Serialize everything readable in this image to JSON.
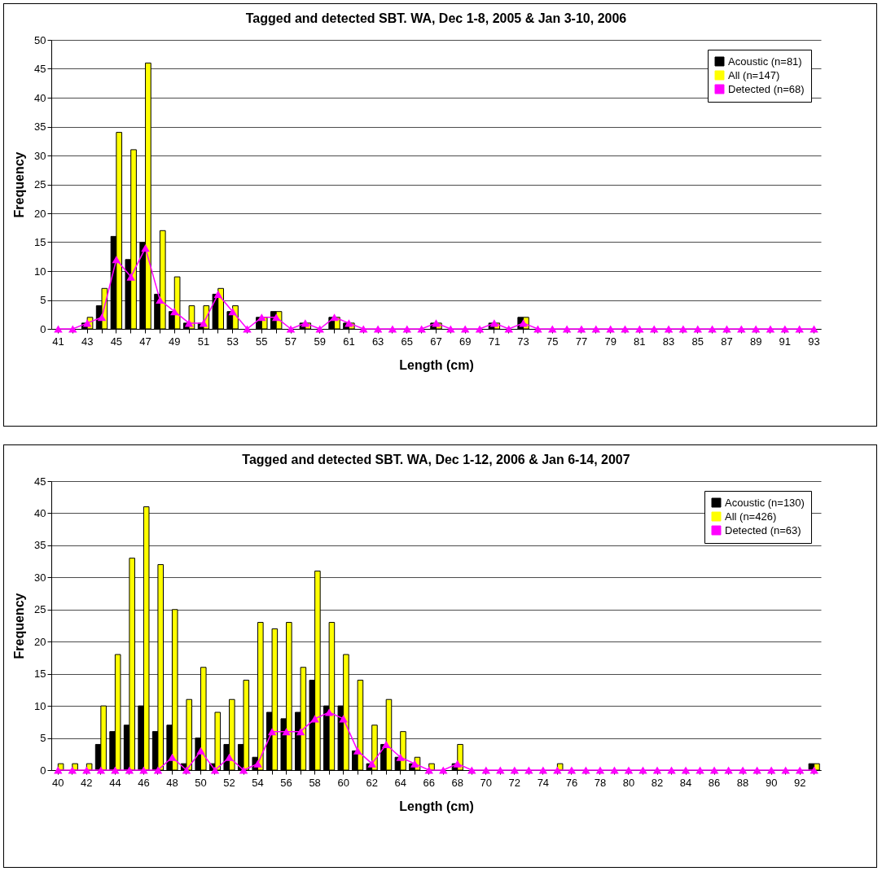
{
  "chart_data": [
    {
      "type": "bar",
      "title": "Tagged and detected SBT. WA, Dec 1-8, 2005 & Jan 3-10, 2006",
      "xlabel": "Length (cm)",
      "ylabel": "Frequency",
      "categories": [
        "41",
        null,
        "43",
        null,
        "45",
        null,
        "47",
        null,
        "49",
        null,
        "51",
        null,
        "53",
        null,
        "55",
        null,
        "57",
        null,
        "59",
        null,
        "61",
        null,
        "63",
        null,
        "65",
        null,
        "67",
        null,
        "69",
        null,
        "71",
        null,
        "73",
        null,
        "75",
        null,
        "77",
        null,
        "79",
        null,
        "81",
        null,
        "83",
        null,
        "85",
        null,
        "87",
        null,
        "89",
        null,
        "91",
        null,
        "93"
      ],
      "series": [
        {
          "name": "Acoustic (n=81)",
          "color": "#000000",
          "values": [
            0,
            0,
            1,
            4,
            16,
            12,
            15,
            6,
            3,
            1,
            1,
            6,
            3,
            0,
            2,
            3,
            0,
            1,
            0,
            2,
            1,
            0,
            0,
            0,
            0,
            0,
            1,
            0,
            0,
            0,
            1,
            0,
            2,
            0,
            0,
            0,
            0,
            0,
            0,
            0,
            0,
            0,
            0,
            0,
            0,
            0,
            0,
            0,
            0,
            0,
            0,
            0,
            0
          ]
        },
        {
          "name": "All (n=147)",
          "color": "#ffff00",
          "values": [
            0,
            0,
            2,
            7,
            34,
            31,
            46,
            17,
            9,
            4,
            4,
            7,
            4,
            0,
            2,
            3,
            0,
            1,
            0,
            2,
            1,
            0,
            0,
            0,
            0,
            0,
            1,
            0,
            0,
            0,
            1,
            0,
            2,
            0,
            0,
            0,
            0,
            0,
            0,
            0,
            0,
            0,
            0,
            0,
            0,
            0,
            0,
            0,
            0,
            0,
            0,
            0,
            0
          ]
        },
        {
          "name": "Detected (n=68)",
          "type": "line",
          "color": "#ff00ff",
          "values": [
            0,
            0,
            1,
            2,
            12,
            9,
            14,
            5,
            3,
            1,
            1,
            6,
            3,
            0,
            2,
            2,
            0,
            1,
            0,
            2,
            1,
            0,
            0,
            0,
            0,
            0,
            1,
            0,
            0,
            0,
            1,
            0,
            1,
            0,
            0,
            0,
            0,
            0,
            0,
            0,
            0,
            0,
            0,
            0,
            0,
            0,
            0,
            0,
            0,
            0,
            0,
            0,
            0
          ]
        }
      ],
      "ylim": [
        0,
        50
      ],
      "yticks": [
        0,
        5,
        10,
        15,
        20,
        25,
        30,
        35,
        40,
        45,
        50
      ],
      "grid": "y",
      "legend": "top right",
      "marker": "triangle"
    },
    {
      "type": "bar",
      "title": "Tagged and detected SBT. WA, Dec 1-12, 2006 & Jan 6-14, 2007",
      "xlabel": "Length (cm)",
      "ylabel": "Frequency",
      "categories": [
        "40",
        null,
        "42",
        null,
        "44",
        null,
        "46",
        null,
        "48",
        null,
        "50",
        null,
        "52",
        null,
        "54",
        null,
        "56",
        null,
        "58",
        null,
        "60",
        null,
        "62",
        null,
        "64",
        null,
        "66",
        null,
        "68",
        null,
        "70",
        null,
        "72",
        null,
        "74",
        null,
        "76",
        null,
        "78",
        null,
        "80",
        null,
        "82",
        null,
        "84",
        null,
        "86",
        null,
        "88",
        null,
        "90",
        null,
        "92",
        null
      ],
      "series": [
        {
          "name": "Acoustic (n=130)",
          "color": "#000000",
          "values": [
            0,
            0,
            0,
            4,
            6,
            7,
            10,
            6,
            7,
            1,
            5,
            1,
            4,
            4,
            2,
            9,
            8,
            9,
            14,
            10,
            10,
            3,
            1,
            4,
            2,
            1,
            0,
            0,
            1,
            0,
            0,
            0,
            0,
            0,
            0,
            0,
            0,
            0,
            0,
            0,
            0,
            0,
            0,
            0,
            0,
            0,
            0,
            0,
            0,
            0,
            0,
            0,
            0,
            1
          ]
        },
        {
          "name": "All (n=426)",
          "color": "#ffff00",
          "values": [
            1,
            1,
            1,
            10,
            18,
            33,
            41,
            32,
            25,
            11,
            16,
            9,
            11,
            14,
            23,
            22,
            23,
            16,
            31,
            23,
            18,
            14,
            7,
            11,
            6,
            2,
            1,
            0,
            4,
            0,
            0,
            0,
            0,
            0,
            0,
            1,
            0,
            0,
            0,
            0,
            0,
            0,
            0,
            0,
            0,
            0,
            0,
            0,
            0,
            0,
            0,
            0,
            0,
            1
          ]
        },
        {
          "name": "Detected (n=63)",
          "type": "line",
          "color": "#ff00ff",
          "values": [
            0,
            0,
            0,
            0,
            0,
            0,
            0,
            0,
            2,
            0,
            3,
            0,
            2,
            0,
            1,
            6,
            6,
            6,
            8,
            9,
            8,
            3,
            1,
            4,
            2,
            1,
            0,
            0,
            1,
            0,
            0,
            0,
            0,
            0,
            0,
            0,
            0,
            0,
            0,
            0,
            0,
            0,
            0,
            0,
            0,
            0,
            0,
            0,
            0,
            0,
            0,
            0,
            0,
            0
          ]
        }
      ],
      "ylim": [
        0,
        45
      ],
      "yticks": [
        0,
        5,
        10,
        15,
        20,
        25,
        30,
        35,
        40,
        45
      ],
      "grid": "y",
      "legend": "top right",
      "marker": "triangle"
    }
  ]
}
